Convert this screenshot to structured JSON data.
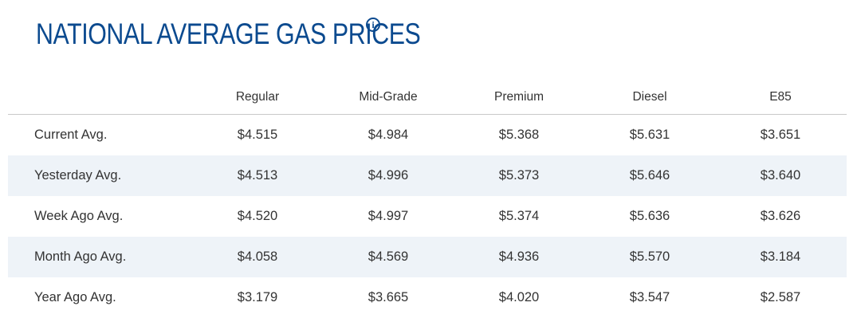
{
  "title": "NATIONAL AVERAGE GAS PRICES",
  "info_icon": "info-icon",
  "columns": [
    "Regular",
    "Mid-Grade",
    "Premium",
    "Diesel",
    "E85"
  ],
  "rows": [
    {
      "label": "Current Avg.",
      "values": [
        "$4.515",
        "$4.984",
        "$5.368",
        "$5.631",
        "$3.651"
      ]
    },
    {
      "label": "Yesterday Avg.",
      "values": [
        "$4.513",
        "$4.996",
        "$5.373",
        "$5.646",
        "$3.640"
      ]
    },
    {
      "label": "Week Ago Avg.",
      "values": [
        "$4.520",
        "$4.997",
        "$5.374",
        "$5.636",
        "$3.626"
      ]
    },
    {
      "label": "Month Ago Avg.",
      "values": [
        "$4.058",
        "$4.569",
        "$4.936",
        "$5.570",
        "$3.184"
      ]
    },
    {
      "label": "Year Ago Avg.",
      "values": [
        "$3.179",
        "$3.665",
        "$4.020",
        "$3.547",
        "$2.587"
      ]
    }
  ],
  "colors": {
    "title": "#0b4a8f",
    "row_alt_bg": "#eef3f8",
    "text": "#333333",
    "divider": "#c9c9c9"
  }
}
